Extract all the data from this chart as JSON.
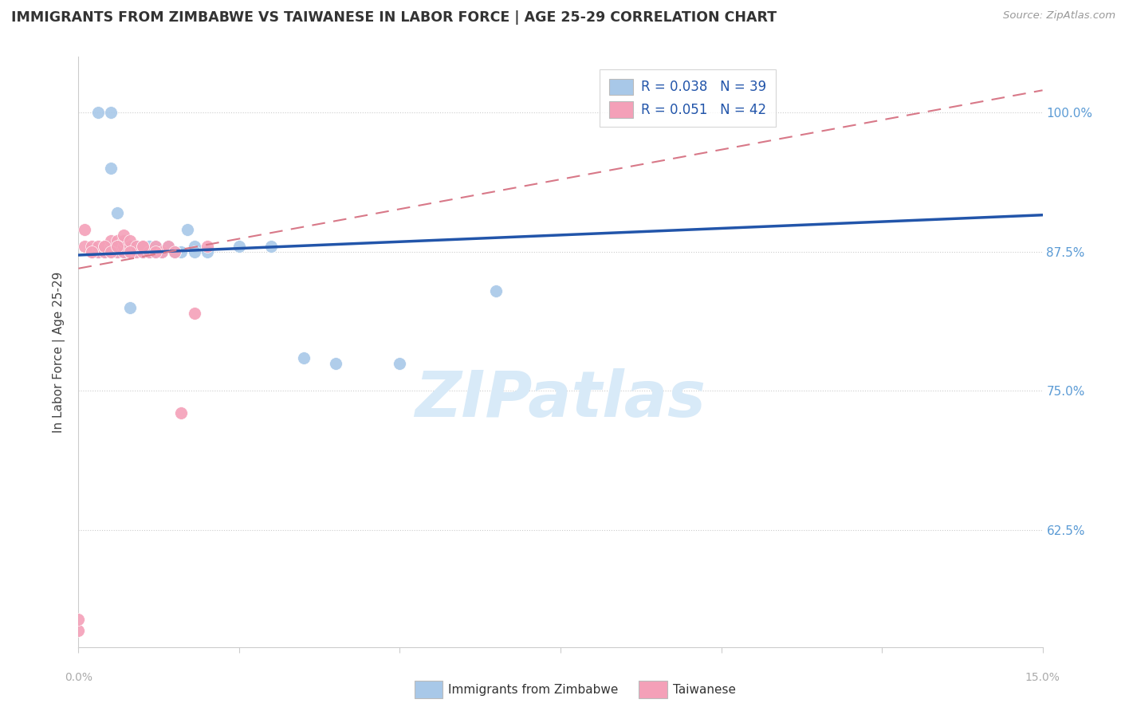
{
  "title": "IMMIGRANTS FROM ZIMBABWE VS TAIWANESE IN LABOR FORCE | AGE 25-29 CORRELATION CHART",
  "source": "Source: ZipAtlas.com",
  "ylabel": "In Labor Force | Age 25-29",
  "y_ticks": [
    "100.0%",
    "87.5%",
    "75.0%",
    "62.5%"
  ],
  "y_tick_vals": [
    1.0,
    0.875,
    0.75,
    0.625
  ],
  "x_range": [
    0.0,
    0.15
  ],
  "y_range": [
    0.52,
    1.05
  ],
  "legend_blue_R": "R = 0.038",
  "legend_blue_N": "N = 39",
  "legend_pink_R": "R = 0.051",
  "legend_pink_N": "N = 42",
  "legend_label_blue": "Immigrants from Zimbabwe",
  "legend_label_pink": "Taiwanese",
  "blue_color": "#a8c8e8",
  "pink_color": "#f4a0b8",
  "trend_blue_color": "#2255aa",
  "trend_pink_color": "#d87888",
  "watermark": "ZIPatlas",
  "blue_x": [
    0.003,
    0.005,
    0.005,
    0.006,
    0.006,
    0.007,
    0.007,
    0.008,
    0.008,
    0.009,
    0.009,
    0.01,
    0.01,
    0.011,
    0.011,
    0.012,
    0.012,
    0.013,
    0.014,
    0.015,
    0.016,
    0.017,
    0.018,
    0.02,
    0.025,
    0.03,
    0.035,
    0.04,
    0.05,
    0.003,
    0.004,
    0.006,
    0.008,
    0.01,
    0.012,
    0.015,
    0.018,
    0.008,
    0.065
  ],
  "blue_y": [
    1.0,
    1.0,
    0.95,
    0.91,
    0.88,
    0.88,
    0.875,
    0.88,
    0.875,
    0.88,
    0.875,
    0.875,
    0.88,
    0.875,
    0.88,
    0.875,
    0.88,
    0.875,
    0.88,
    0.875,
    0.875,
    0.895,
    0.88,
    0.875,
    0.88,
    0.88,
    0.78,
    0.775,
    0.775,
    0.875,
    0.875,
    0.875,
    0.875,
    0.875,
    0.875,
    0.875,
    0.875,
    0.825,
    0.84
  ],
  "pink_x": [
    0.0,
    0.001,
    0.001,
    0.002,
    0.002,
    0.003,
    0.003,
    0.004,
    0.004,
    0.005,
    0.005,
    0.005,
    0.006,
    0.006,
    0.006,
    0.007,
    0.007,
    0.007,
    0.007,
    0.008,
    0.008,
    0.008,
    0.009,
    0.009,
    0.01,
    0.01,
    0.011,
    0.012,
    0.013,
    0.014,
    0.015,
    0.016,
    0.018,
    0.02,
    0.002,
    0.004,
    0.005,
    0.006,
    0.008,
    0.01,
    0.012,
    0.0
  ],
  "pink_y": [
    0.535,
    0.88,
    0.895,
    0.875,
    0.88,
    0.875,
    0.88,
    0.875,
    0.88,
    0.875,
    0.88,
    0.885,
    0.875,
    0.88,
    0.885,
    0.875,
    0.88,
    0.885,
    0.89,
    0.875,
    0.88,
    0.885,
    0.875,
    0.88,
    0.875,
    0.88,
    0.875,
    0.88,
    0.875,
    0.88,
    0.875,
    0.73,
    0.82,
    0.88,
    0.875,
    0.88,
    0.875,
    0.88,
    0.875,
    0.88,
    0.875,
    0.545
  ],
  "blue_trend_x": [
    0.0,
    0.15
  ],
  "blue_trend_y": [
    0.872,
    0.908
  ],
  "pink_trend_x": [
    0.0,
    0.15
  ],
  "pink_trend_y": [
    0.86,
    1.02
  ]
}
